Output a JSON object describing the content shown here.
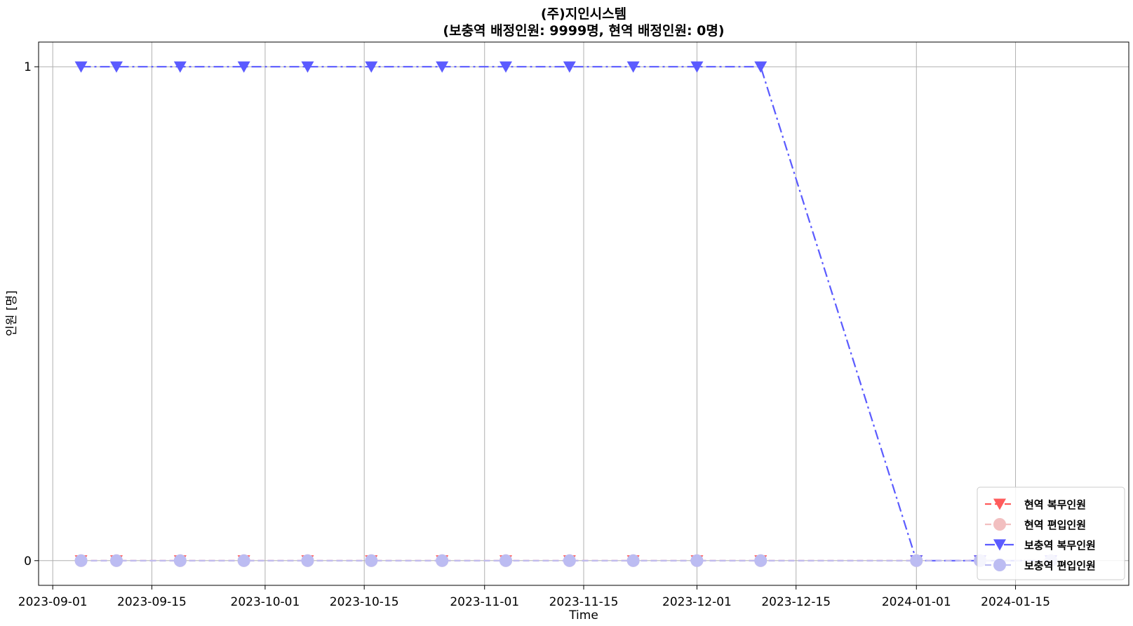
{
  "chart_data": {
    "type": "line",
    "title": "(주)지인시스템",
    "subtitle": "(보충역 배정인원: 9999명, 현역 배정인원: 0명)",
    "xlabel": "Time",
    "ylabel": "인원 [명]",
    "x": [
      "2023-09-05",
      "2023-09-10",
      "2023-09-19",
      "2023-09-28",
      "2023-10-07",
      "2023-10-16",
      "2023-10-26",
      "2023-11-04",
      "2023-11-13",
      "2023-11-22",
      "2023-12-01",
      "2023-12-10",
      "2024-01-01",
      "2024-01-10",
      "2024-01-20"
    ],
    "xlim": [
      "2023-08-30",
      "2024-01-31"
    ],
    "ylim": [
      -0.05,
      1.05
    ],
    "x_ticks": [
      "2023-09-01",
      "2023-09-15",
      "2023-10-01",
      "2023-10-15",
      "2023-11-01",
      "2023-11-15",
      "2023-12-01",
      "2023-12-15",
      "2024-01-01",
      "2024-01-15"
    ],
    "y_ticks": [
      0,
      1
    ],
    "grid": true,
    "legend_position": "lower-right",
    "series": [
      {
        "name": "현역 복무인원",
        "values": [
          0,
          0,
          0,
          0,
          0,
          0,
          0,
          0,
          0,
          0,
          0,
          0,
          0,
          0,
          0
        ],
        "color": "#ff5b5b",
        "marker": "triangle-down",
        "line_style": "dashed"
      },
      {
        "name": "현역 편입인원",
        "values": [
          0,
          0,
          0,
          0,
          0,
          0,
          0,
          0,
          0,
          0,
          0,
          0,
          0,
          0,
          0
        ],
        "color": "#f2bfc0",
        "marker": "circle",
        "line_style": "dashed"
      },
      {
        "name": "보충역 복무인원",
        "values": [
          1,
          1,
          1,
          1,
          1,
          1,
          1,
          1,
          1,
          1,
          1,
          1,
          0,
          0,
          0
        ],
        "color": "#5b5bff",
        "marker": "triangle-down",
        "line_style": "dash-dot"
      },
      {
        "name": "보충역 편입인원",
        "values": [
          0,
          0,
          0,
          0,
          0,
          0,
          0,
          0,
          0,
          0,
          0,
          0,
          0,
          0,
          0
        ],
        "color": "#bcbcf2",
        "marker": "circle",
        "line_style": "dashed"
      }
    ]
  }
}
